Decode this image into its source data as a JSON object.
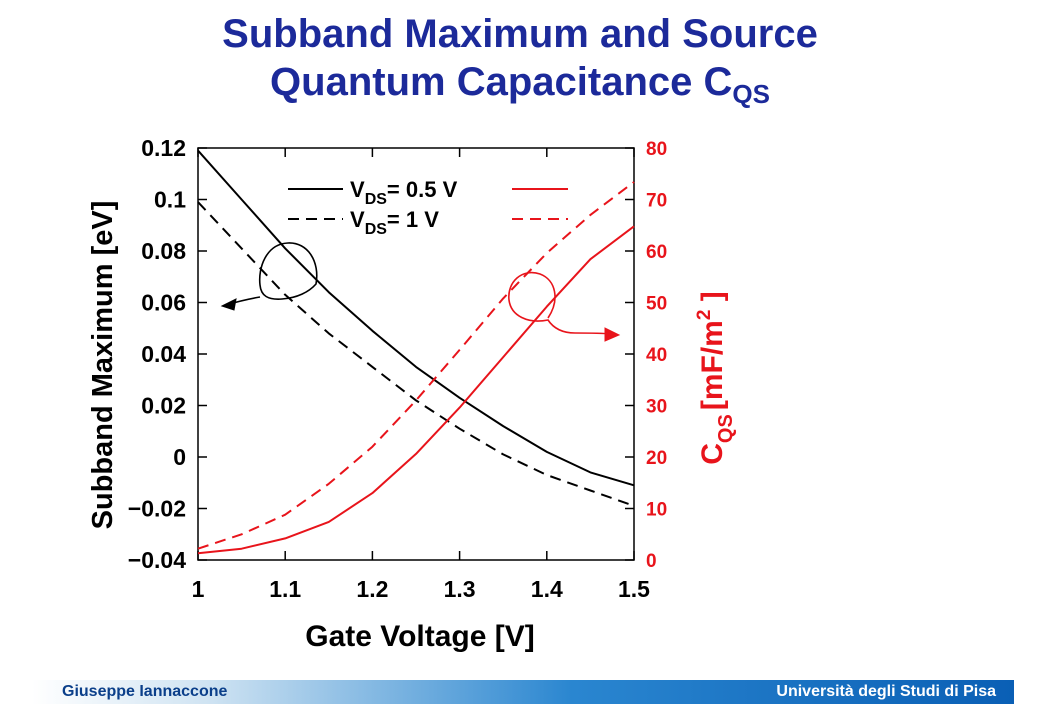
{
  "title": {
    "line1": "Subband Maximum and Source",
    "line2_main": "Quantum Capacitance C",
    "line2_sub": "QS"
  },
  "footer": {
    "left": "Giuseppe Iannaccone",
    "right": "Università degli Studi di Pisa"
  },
  "colors": {
    "title": "#1c2a9a",
    "left_axis": "#000000",
    "right_axis": "#e8141b"
  },
  "chart_data": {
    "type": "line",
    "xlabel": "Gate Voltage [V]",
    "ylabel_left": "Subband Maximum [eV]",
    "ylabel_right": {
      "main": "C",
      "sub": "QS",
      "bracket_text": "[mF/m",
      "exp": "2",
      "close": " ]"
    },
    "xlim": [
      1.0,
      1.5
    ],
    "ylim_left": [
      -0.04,
      0.12
    ],
    "ylim_right": [
      0,
      80
    ],
    "x_ticks": [
      "1",
      "1.1",
      "1.2",
      "1.3",
      "1.4",
      "1.5"
    ],
    "y_left_ticks": [
      "0.12",
      "0.1",
      "0.08",
      "0.06",
      "0.04",
      "0.02",
      "0",
      "−0.02",
      "−0.04"
    ],
    "y_right_ticks": [
      "80",
      "70",
      "60",
      "50",
      "40",
      "30",
      "20",
      "10",
      "0"
    ],
    "legend": [
      {
        "prefix": "V",
        "sub": "DS",
        "suffix": "= 0.5 V",
        "style": "solid"
      },
      {
        "prefix": "V",
        "sub": "DS",
        "suffix": "= 1 V",
        "style": "dashed"
      }
    ],
    "series": [
      {
        "axis": "left",
        "style": "solid",
        "color": "#000000",
        "x": [
          1.0,
          1.05,
          1.1,
          1.15,
          1.2,
          1.25,
          1.3,
          1.35,
          1.4,
          1.45,
          1.5
        ],
        "values": [
          0.119,
          0.1,
          0.081,
          0.064,
          0.049,
          0.035,
          0.023,
          0.012,
          0.002,
          -0.006,
          -0.011
        ]
      },
      {
        "axis": "left",
        "style": "dashed",
        "color": "#000000",
        "x": [
          1.0,
          1.05,
          1.1,
          1.15,
          1.2,
          1.25,
          1.3,
          1.35,
          1.4,
          1.45,
          1.5
        ],
        "values": [
          0.099,
          0.081,
          0.063,
          0.048,
          0.035,
          0.022,
          0.011,
          0.001,
          -0.007,
          -0.013,
          -0.019
        ]
      },
      {
        "axis": "right",
        "style": "solid",
        "color": "#e8141b",
        "x": [
          1.0,
          1.05,
          1.1,
          1.15,
          1.2,
          1.25,
          1.3,
          1.35,
          1.4,
          1.45,
          1.5
        ],
        "values": [
          1.3,
          2.2,
          4.2,
          7.4,
          13.0,
          20.6,
          29.6,
          39.4,
          49.2,
          58.4,
          64.8
        ]
      },
      {
        "axis": "right",
        "style": "dashed",
        "color": "#e8141b",
        "x": [
          1.0,
          1.05,
          1.1,
          1.15,
          1.2,
          1.25,
          1.3,
          1.35,
          1.4,
          1.45,
          1.5
        ],
        "values": [
          2.2,
          5.0,
          8.8,
          14.8,
          22.0,
          31.0,
          40.8,
          50.8,
          59.6,
          67.0,
          73.4
        ]
      }
    ]
  }
}
